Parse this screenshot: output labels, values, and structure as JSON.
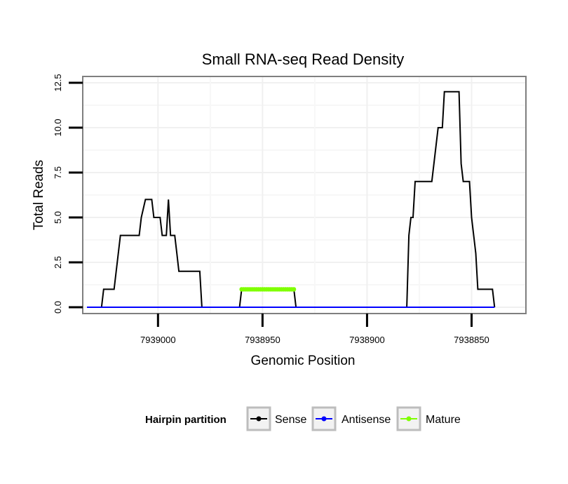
{
  "chart_data": {
    "type": "line",
    "title": "Small RNA-seq Read Density",
    "xlabel": "Genomic Position",
    "ylabel": "Total Reads",
    "xlim": [
      7939036,
      7938824
    ],
    "x_reversed": true,
    "ylim": [
      -0.35,
      12.85
    ],
    "x_ticks": [
      7939000,
      7938950,
      7938900,
      7938850
    ],
    "x_tick_labels": [
      "7939000",
      "7938950",
      "7938900",
      "7938850"
    ],
    "y_ticks": [
      0,
      2.5,
      5,
      7.5,
      10,
      12.5
    ],
    "y_tick_labels": [
      "0.0",
      "2.5",
      "5.0",
      "7.5",
      "10.0",
      "12.5"
    ],
    "grid": true,
    "legend": {
      "title": "Hairpin partition",
      "position": "bottom"
    },
    "series": [
      {
        "name": "Sense",
        "color": "#000000",
        "points": [
          [
            7939034,
            0
          ],
          [
            7939027,
            0
          ],
          [
            7939026,
            1
          ],
          [
            7939021,
            1
          ],
          [
            7939020,
            2
          ],
          [
            7939019,
            3
          ],
          [
            7939018,
            4
          ],
          [
            7939009,
            4
          ],
          [
            7939008,
            5
          ],
          [
            7939006,
            6
          ],
          [
            7939003,
            6
          ],
          [
            7939002,
            5
          ],
          [
            7938999,
            5
          ],
          [
            7938998,
            4
          ],
          [
            7938996,
            4
          ],
          [
            7938995,
            6
          ],
          [
            7938994,
            4
          ],
          [
            7938992,
            4
          ],
          [
            7938991,
            3
          ],
          [
            7938990,
            2
          ],
          [
            7938980,
            2
          ],
          [
            7938979,
            0
          ],
          [
            7938961,
            0
          ],
          [
            7938960,
            1
          ],
          [
            7938935,
            1
          ],
          [
            7938934,
            0
          ],
          [
            7938881,
            0
          ],
          [
            7938880,
            4
          ],
          [
            7938879,
            5
          ],
          [
            7938878,
            5
          ],
          [
            7938877,
            7
          ],
          [
            7938869,
            7
          ],
          [
            7938868,
            8
          ],
          [
            7938867,
            9
          ],
          [
            7938866,
            10
          ],
          [
            7938864,
            10
          ],
          [
            7938863,
            12
          ],
          [
            7938856,
            12
          ],
          [
            7938855,
            8
          ],
          [
            7938854,
            7
          ],
          [
            7938851,
            7
          ],
          [
            7938850,
            5
          ],
          [
            7938849,
            4
          ],
          [
            7938848,
            3
          ],
          [
            7938847,
            1
          ],
          [
            7938840,
            1
          ],
          [
            7938839,
            0
          ]
        ]
      },
      {
        "name": "Antisense",
        "color": "#0000ff",
        "points": [
          [
            7939034,
            0
          ],
          [
            7938839,
            0
          ]
        ]
      },
      {
        "name": "Mature",
        "color": "#7fff00",
        "points": [
          [
            7938960,
            1
          ],
          [
            7938935,
            1
          ]
        ]
      }
    ]
  }
}
